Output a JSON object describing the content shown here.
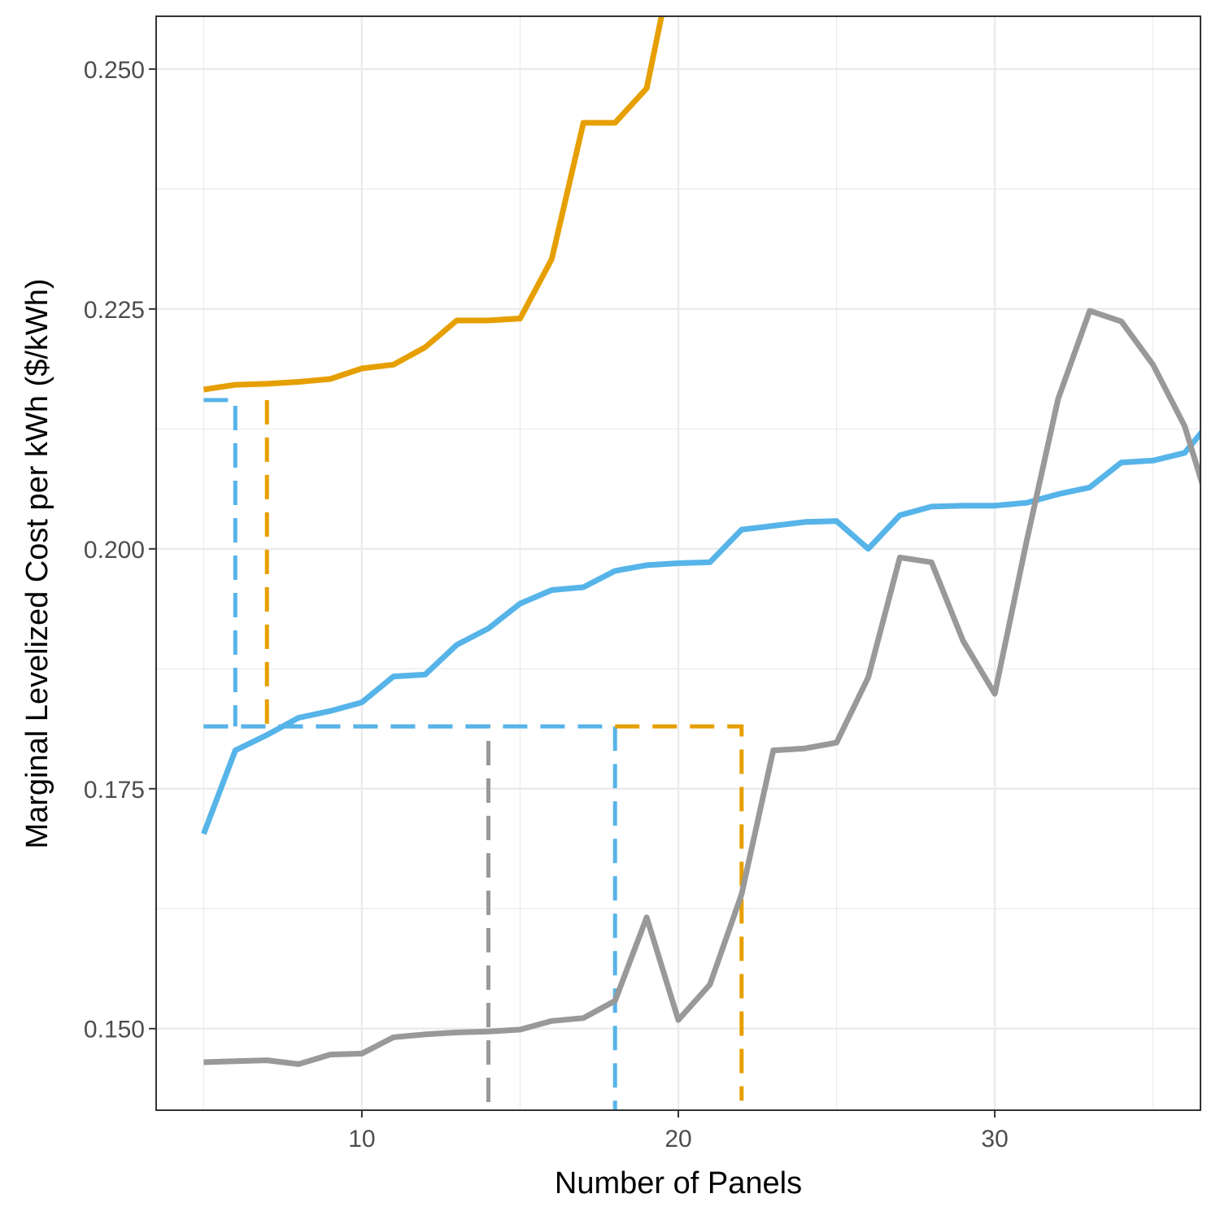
{
  "chart_data": {
    "type": "line",
    "title": "",
    "xlabel": "Number of Panels",
    "ylabel": "Marginal Levelized Cost per kWh ($/kWh)",
    "xlim": [
      3.5,
      36.5
    ],
    "ylim": [
      0.1415,
      0.2555
    ],
    "x_ticks": [
      10,
      20,
      30
    ],
    "x_tick_labels": [
      "10",
      "20",
      "30"
    ],
    "y_ticks": [
      0.15,
      0.175,
      0.2,
      0.225,
      0.25
    ],
    "y_tick_labels": [
      "0.150",
      "0.175",
      "0.200",
      "0.225",
      "0.250"
    ],
    "grid": true,
    "legend": "none",
    "series": [
      {
        "color": "#E69F00",
        "x": [
          5,
          6,
          7,
          8,
          9,
          10,
          11,
          12,
          13,
          14,
          15,
          16,
          17,
          18,
          19,
          20
        ],
        "values": [
          0.2166,
          0.2171,
          0.2172,
          0.2174,
          0.2177,
          0.2188,
          0.2192,
          0.221,
          0.2238,
          0.2238,
          0.224,
          0.2302,
          0.2444,
          0.2444,
          0.248,
          0.264
        ]
      },
      {
        "color": "#56B4E9",
        "x": [
          5,
          6,
          7,
          8,
          9,
          10,
          11,
          12,
          13,
          14,
          15,
          16,
          17,
          18,
          19,
          20,
          21,
          22,
          23,
          24,
          25,
          26,
          27,
          28,
          29,
          30,
          31,
          32,
          33,
          34,
          35,
          36,
          37
        ],
        "values": [
          0.1703,
          0.179,
          0.1806,
          0.1824,
          0.1831,
          0.184,
          0.1867,
          0.1869,
          0.19,
          0.1917,
          0.1943,
          0.1957,
          0.196,
          0.1977,
          0.1983,
          0.1985,
          0.1986,
          0.202,
          0.2024,
          0.2028,
          0.2029,
          0.2,
          0.2035,
          0.2044,
          0.2045,
          0.2045,
          0.2048,
          0.2057,
          0.2064,
          0.209,
          0.2092,
          0.21,
          0.214
        ]
      },
      {
        "color": "#999999",
        "x": [
          5,
          6,
          7,
          8,
          9,
          10,
          11,
          12,
          13,
          14,
          15,
          16,
          17,
          18,
          19,
          20,
          21,
          22,
          23,
          24,
          25,
          26,
          27,
          28,
          29,
          30,
          31,
          32,
          33,
          34,
          35,
          36,
          37
        ],
        "values": [
          0.1465,
          0.1466,
          0.1467,
          0.1463,
          0.1473,
          0.1474,
          0.1491,
          0.1494,
          0.1496,
          0.1497,
          0.1499,
          0.1508,
          0.1511,
          0.1529,
          0.1616,
          0.1509,
          0.1546,
          0.164,
          0.179,
          0.1792,
          0.1798,
          0.1866,
          0.1991,
          0.1986,
          0.1904,
          0.1849,
          0.2007,
          0.2156,
          0.2248,
          0.2237,
          0.2192,
          0.2128,
          0.202
        ]
      }
    ],
    "reference_lines": [
      {
        "color": "#56B4E9",
        "points": [
          [
            5,
            0.2155
          ],
          [
            6,
            0.2155
          ],
          [
            6,
            0.1815
          ]
        ]
      },
      {
        "color": "#E69F00",
        "points": [
          [
            7,
            0.2155
          ],
          [
            7,
            0.1815
          ]
        ]
      },
      {
        "color": "#999999",
        "points": [
          [
            5,
            0.1815
          ],
          [
            14,
            0.1815
          ],
          [
            14,
            0.1415
          ]
        ]
      },
      {
        "color": "#56B4E9",
        "points": [
          [
            5,
            0.1815
          ],
          [
            18,
            0.1815
          ],
          [
            18,
            0.1415
          ]
        ]
      },
      {
        "color": "#E69F00",
        "points": [
          [
            18,
            0.1815
          ],
          [
            22,
            0.1815
          ],
          [
            22,
            0.1425
          ]
        ]
      }
    ]
  }
}
